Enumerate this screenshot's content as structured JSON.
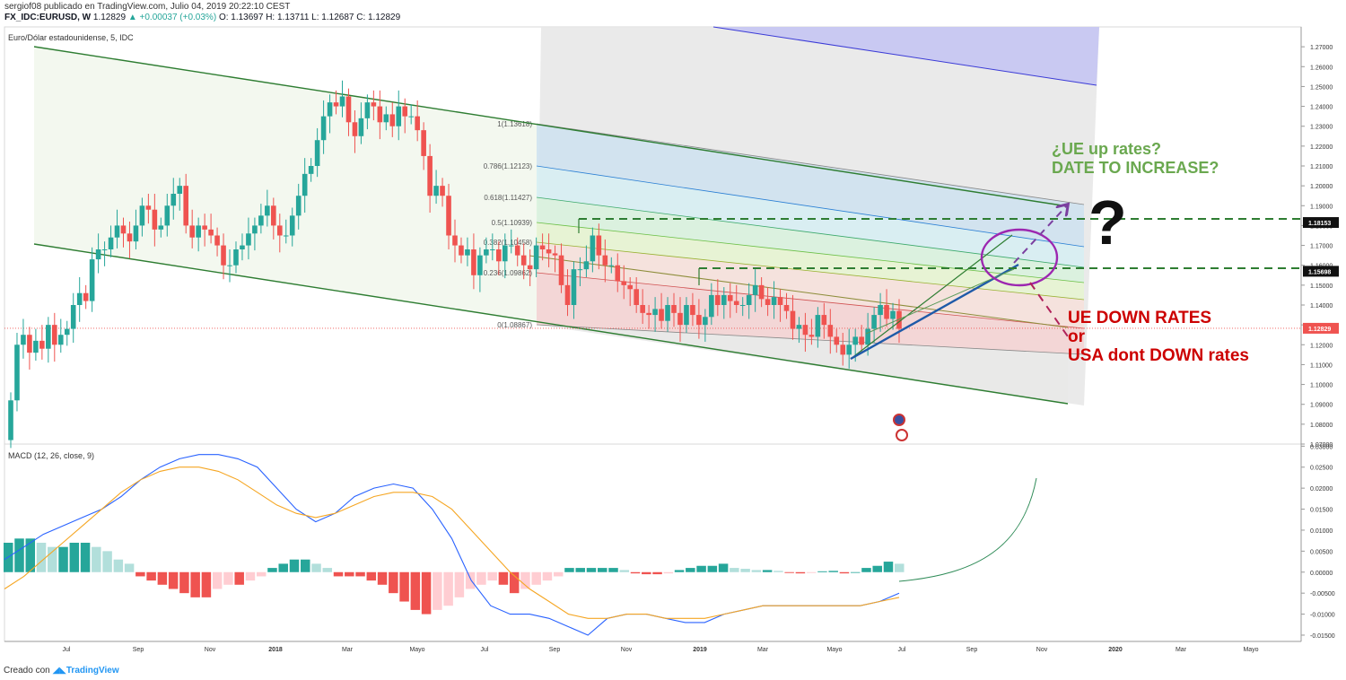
{
  "header": {
    "line1": "sergiof08 publicado en TradingView.com, Julio 04, 2019 20:22:10 CEST",
    "symbol": "FX_IDC:EURUSD, W",
    "last": "1.12829",
    "change": "+0.00037 (+0.03%)",
    "o": "O: 1.13697",
    "h": "H: 1.13711",
    "l": "L: 1.12687",
    "c": "C: 1.12829"
  },
  "price_pane": {
    "title": "Euro/Dólar estadounidense, 5, IDC"
  },
  "macd_pane": {
    "title": "MACD (12, 26, close, 9)"
  },
  "footer": {
    "created_with": "Creado con",
    "brand": "TradingView"
  },
  "annotations": {
    "ue_up_line1": "¿UE up rates?",
    "ue_up_line2": "DATE TO INCREASE?",
    "question": "?",
    "down_line1": "UE DOWN RATES",
    "down_line2": "or",
    "down_line3": "USA dont DOWN rates"
  },
  "colors": {
    "bull": "#26a69a",
    "bear": "#ef5350",
    "channel": "#2e7d32",
    "macd_line": "#2962ff",
    "signal_line": "#f5a623",
    "annotation_green": "#6aa84f",
    "annotation_red": "#cc0000",
    "circle": "#9c27b0"
  },
  "chart_data": [
    {
      "type": "candlestick",
      "title": "Euro/Dólar estadounidense, 5, IDC",
      "x_tick_labels": [
        "Jul",
        "Sep",
        "Nov",
        "2018",
        "Mar",
        "Mayo",
        "Jul",
        "Sep",
        "Nov",
        "2019",
        "Mar",
        "Mayo",
        "Jul",
        "Sep",
        "Nov",
        "2020",
        "Mar",
        "Mayo"
      ],
      "y_tick_labels": [
        "1.27000",
        "1.26000",
        "1.25000",
        "1.24000",
        "1.23000",
        "1.22000",
        "1.21000",
        "1.20000",
        "1.19000",
        "1.18000",
        "1.17000",
        "1.16000",
        "1.15000",
        "1.14000",
        "1.13000",
        "1.12000",
        "1.11000",
        "1.10000",
        "1.09000",
        "1.08000",
        "1.07000"
      ],
      "ylim": [
        1.07,
        1.28
      ],
      "price_labels": [
        "1.18153",
        "1.15698",
        "1.12829"
      ],
      "fib_levels": [
        {
          "label": "1(1.13618)"
        },
        {
          "label": "0.786(1.12123)"
        },
        {
          "label": "0.618(1.11427)"
        },
        {
          "label": "0.5(1.10939)"
        },
        {
          "label": "0.382(1.10458)"
        },
        {
          "label": "0.236(1.09862)"
        },
        {
          "label": "0(1.08867)"
        }
      ],
      "closes": [
        1.092,
        1.12,
        1.125,
        1.116,
        1.122,
        1.118,
        1.13,
        1.12,
        1.125,
        1.128,
        1.14,
        1.146,
        1.142,
        1.163,
        1.168,
        1.168,
        1.174,
        1.18,
        1.176,
        1.172,
        1.18,
        1.19,
        1.188,
        1.178,
        1.18,
        1.19,
        1.196,
        1.2,
        1.18,
        1.174,
        1.18,
        1.178,
        1.175,
        1.17,
        1.16,
        1.16,
        1.168,
        1.17,
        1.176,
        1.18,
        1.185,
        1.19,
        1.18,
        1.175,
        1.175,
        1.185,
        1.195,
        1.206,
        1.21,
        1.223,
        1.235,
        1.242,
        1.24,
        1.245,
        1.232,
        1.225,
        1.234,
        1.242,
        1.24,
        1.232,
        1.236,
        1.23,
        1.24,
        1.235,
        1.235,
        1.228,
        1.215,
        1.195,
        1.2,
        1.195,
        1.175,
        1.17,
        1.165,
        1.168,
        1.155,
        1.165,
        1.168,
        1.168,
        1.162,
        1.17,
        1.17,
        1.165,
        1.16,
        1.158,
        1.17,
        1.168,
        1.166,
        1.165,
        1.15,
        1.14,
        1.158,
        1.158,
        1.162,
        1.175,
        1.165,
        1.16,
        1.16,
        1.152,
        1.15,
        1.148,
        1.14,
        1.136,
        1.135,
        1.138,
        1.132,
        1.14,
        1.136,
        1.13,
        1.14,
        1.135,
        1.13,
        1.134,
        1.145,
        1.14,
        1.145,
        1.142,
        1.14,
        1.14,
        1.145,
        1.15,
        1.143,
        1.14,
        1.144,
        1.14,
        1.137,
        1.128,
        1.13,
        1.125,
        1.124,
        1.135,
        1.13,
        1.124,
        1.12,
        1.115,
        1.12,
        1.124,
        1.12,
        1.128,
        1.135,
        1.14,
        1.133,
        1.137,
        1.128
      ],
      "channel_upper": [
        [
          1.268,
          0
        ],
        [
          1.19,
          1
        ]
      ],
      "channel_lower": [
        [
          1.17,
          0
        ],
        [
          1.09,
          1
        ]
      ]
    },
    {
      "type": "line",
      "title": "MACD (12, 26, close, 9)",
      "y_tick_labels": [
        "0.03000",
        "0.02500",
        "0.02000",
        "0.01500",
        "0.01000",
        "0.00500",
        "0.00000",
        "-0.00500",
        "-0.01000",
        "-0.01500"
      ],
      "ylim": [
        -0.0165,
        0.0305
      ],
      "series": [
        {
          "name": "MACD",
          "values": [
            0.003,
            0.006,
            0.009,
            0.011,
            0.013,
            0.015,
            0.018,
            0.022,
            0.025,
            0.027,
            0.028,
            0.028,
            0.027,
            0.025,
            0.02,
            0.015,
            0.012,
            0.014,
            0.018,
            0.02,
            0.021,
            0.02,
            0.015,
            0.008,
            -0.002,
            -0.008,
            -0.01,
            -0.01,
            -0.011,
            -0.013,
            -0.015,
            -0.011,
            -0.01,
            -0.01,
            -0.011,
            -0.012,
            -0.012,
            -0.01,
            -0.009,
            -0.008,
            -0.008,
            -0.008,
            -0.008,
            -0.008,
            -0.008,
            -0.007,
            -0.005
          ]
        },
        {
          "name": "Signal",
          "values": [
            -0.004,
            -0.001,
            0.003,
            0.007,
            0.011,
            0.015,
            0.019,
            0.022,
            0.024,
            0.025,
            0.025,
            0.024,
            0.022,
            0.019,
            0.016,
            0.014,
            0.013,
            0.014,
            0.016,
            0.018,
            0.019,
            0.019,
            0.018,
            0.015,
            0.01,
            0.005,
            0.0,
            -0.004,
            -0.007,
            -0.01,
            -0.011,
            -0.011,
            -0.01,
            -0.01,
            -0.011,
            -0.011,
            -0.011,
            -0.01,
            -0.009,
            -0.008,
            -0.008,
            -0.008,
            -0.008,
            -0.008,
            -0.008,
            -0.007,
            -0.006
          ]
        }
      ],
      "histogram": [
        0.007,
        0.008,
        0.008,
        0.007,
        0.006,
        0.006,
        0.007,
        0.007,
        0.006,
        0.005,
        0.003,
        0.002,
        -0.001,
        -0.002,
        -0.003,
        -0.004,
        -0.005,
        -0.006,
        -0.006,
        -0.004,
        -0.003,
        -0.003,
        -0.002,
        -0.001,
        0.001,
        0.002,
        0.003,
        0.003,
        0.002,
        0.001,
        -0.001,
        -0.001,
        -0.001,
        -0.002,
        -0.003,
        -0.005,
        -0.007,
        -0.009,
        -0.01,
        -0.009,
        -0.008,
        -0.006,
        -0.004,
        -0.003,
        -0.002,
        -0.003,
        -0.005,
        -0.004,
        -0.003,
        -0.002,
        -0.001,
        0.001,
        0.001,
        0.001,
        0.001,
        0.001,
        0.0005,
        -0.0003,
        -0.0005,
        -0.0005,
        -0.0003,
        0.0005,
        0.001,
        0.0015,
        0.0015,
        0.002,
        0.001,
        0.0008,
        0.0005,
        0.0005,
        0.0003,
        -0.0002,
        -0.0003,
        -0.0002,
        0.0002,
        0.0003,
        -0.0003,
        0.0,
        0.001,
        0.0015,
        0.0025,
        0.002
      ]
    }
  ]
}
